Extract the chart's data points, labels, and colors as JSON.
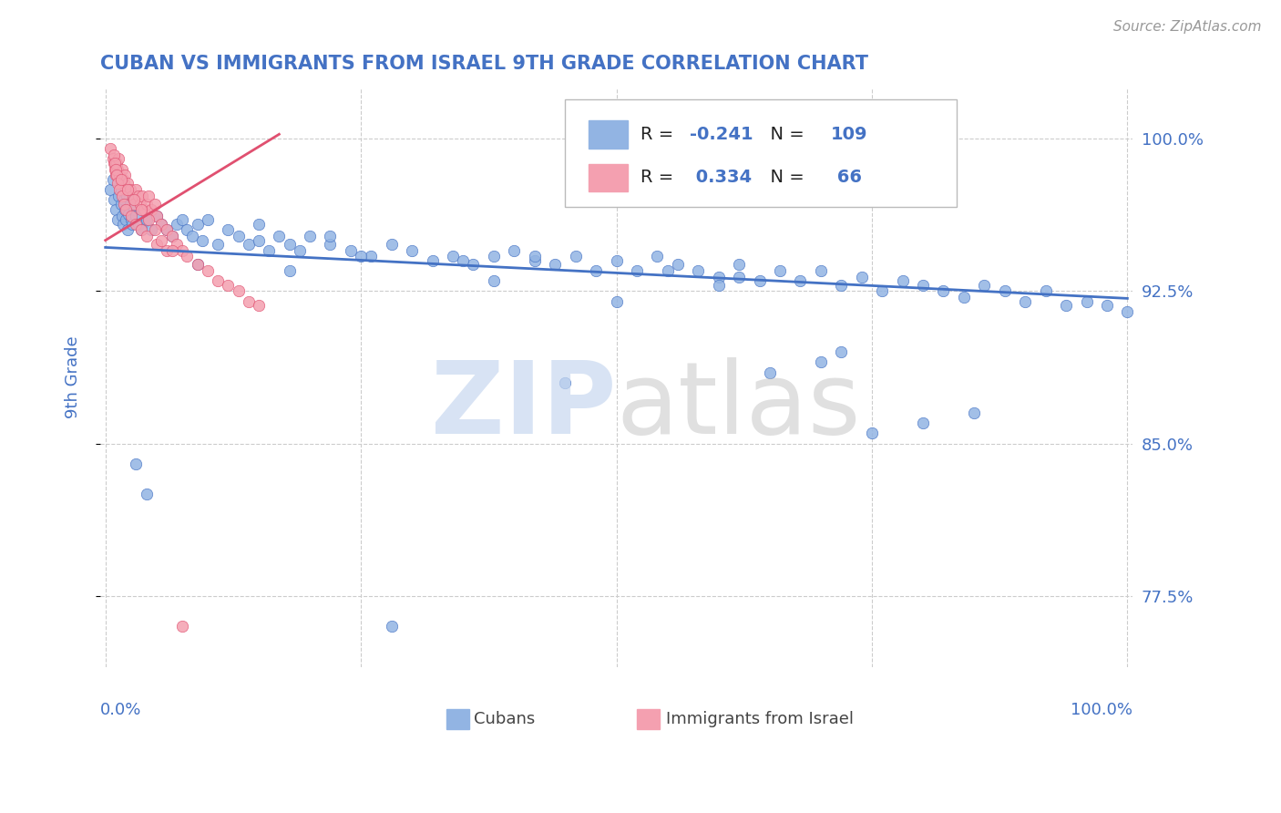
{
  "title": "CUBAN VS IMMIGRANTS FROM ISRAEL 9TH GRADE CORRELATION CHART",
  "source": "Source: ZipAtlas.com",
  "ylabel": "9th Grade",
  "legend_label1": "Cubans",
  "legend_label2": "Immigrants from Israel",
  "R1": -0.241,
  "N1": 109,
  "R2": 0.334,
  "N2": 66,
  "color_blue": "#92B4E3",
  "color_pink": "#F4A0B0",
  "color_trend_blue": "#4472C4",
  "color_trend_pink": "#E05070",
  "title_color": "#4472C4",
  "axis_label_color": "#4472C4",
  "tick_color": "#4472C4",
  "ymin": 0.74,
  "ymax": 1.025,
  "xmin": -0.005,
  "xmax": 1.005,
  "yticks": [
    0.775,
    0.85,
    0.925,
    1.0
  ],
  "xticks": [
    0.0,
    0.25,
    0.5,
    0.75,
    1.0
  ],
  "blue_x": [
    0.005,
    0.007,
    0.008,
    0.01,
    0.012,
    0.013,
    0.015,
    0.015,
    0.016,
    0.017,
    0.018,
    0.019,
    0.02,
    0.021,
    0.022,
    0.023,
    0.024,
    0.025,
    0.026,
    0.027,
    0.028,
    0.03,
    0.032,
    0.035,
    0.04,
    0.045,
    0.05,
    0.055,
    0.06,
    0.065,
    0.07,
    0.075,
    0.08,
    0.085,
    0.09,
    0.095,
    0.1,
    0.11,
    0.12,
    0.13,
    0.14,
    0.15,
    0.16,
    0.17,
    0.18,
    0.19,
    0.2,
    0.22,
    0.24,
    0.26,
    0.28,
    0.3,
    0.32,
    0.34,
    0.36,
    0.38,
    0.4,
    0.42,
    0.44,
    0.46,
    0.48,
    0.5,
    0.52,
    0.54,
    0.56,
    0.58,
    0.6,
    0.62,
    0.64,
    0.66,
    0.68,
    0.7,
    0.72,
    0.74,
    0.76,
    0.78,
    0.8,
    0.82,
    0.84,
    0.86,
    0.88,
    0.9,
    0.92,
    0.94,
    0.96,
    0.98,
    1.0,
    0.35,
    0.25,
    0.55,
    0.45,
    0.65,
    0.75,
    0.15,
    0.42,
    0.38,
    0.22,
    0.18,
    0.6,
    0.7,
    0.03,
    0.04,
    0.09,
    0.28,
    0.5,
    0.8,
    0.62,
    0.72,
    0.85
  ],
  "blue_y": [
    0.975,
    0.98,
    0.97,
    0.965,
    0.96,
    0.972,
    0.968,
    0.975,
    0.962,
    0.958,
    0.97,
    0.965,
    0.96,
    0.972,
    0.955,
    0.963,
    0.968,
    0.96,
    0.958,
    0.97,
    0.965,
    0.962,
    0.958,
    0.955,
    0.96,
    0.955,
    0.962,
    0.958,
    0.955,
    0.952,
    0.958,
    0.96,
    0.955,
    0.952,
    0.958,
    0.95,
    0.96,
    0.948,
    0.955,
    0.952,
    0.948,
    0.95,
    0.945,
    0.952,
    0.948,
    0.945,
    0.952,
    0.948,
    0.945,
    0.942,
    0.948,
    0.945,
    0.94,
    0.942,
    0.938,
    0.942,
    0.945,
    0.94,
    0.938,
    0.942,
    0.935,
    0.94,
    0.935,
    0.942,
    0.938,
    0.935,
    0.932,
    0.938,
    0.93,
    0.935,
    0.93,
    0.935,
    0.928,
    0.932,
    0.925,
    0.93,
    0.928,
    0.925,
    0.922,
    0.928,
    0.925,
    0.92,
    0.925,
    0.918,
    0.92,
    0.918,
    0.915,
    0.94,
    0.942,
    0.935,
    0.88,
    0.885,
    0.855,
    0.958,
    0.942,
    0.93,
    0.952,
    0.935,
    0.928,
    0.89,
    0.84,
    0.825,
    0.938,
    0.76,
    0.92,
    0.86,
    0.932,
    0.895,
    0.865
  ],
  "pink_x": [
    0.005,
    0.007,
    0.008,
    0.009,
    0.01,
    0.011,
    0.012,
    0.013,
    0.014,
    0.015,
    0.016,
    0.017,
    0.018,
    0.019,
    0.02,
    0.022,
    0.024,
    0.026,
    0.028,
    0.03,
    0.032,
    0.034,
    0.036,
    0.038,
    0.04,
    0.042,
    0.045,
    0.048,
    0.05,
    0.055,
    0.06,
    0.065,
    0.07,
    0.075,
    0.08,
    0.09,
    0.1,
    0.11,
    0.12,
    0.13,
    0.14,
    0.15,
    0.008,
    0.009,
    0.01,
    0.011,
    0.012,
    0.014,
    0.016,
    0.018,
    0.02,
    0.025,
    0.03,
    0.035,
    0.04,
    0.05,
    0.06,
    0.015,
    0.022,
    0.028,
    0.035,
    0.042,
    0.048,
    0.055,
    0.065,
    0.075
  ],
  "pink_y": [
    0.995,
    0.99,
    0.988,
    0.985,
    0.982,
    0.988,
    0.985,
    0.99,
    0.982,
    0.978,
    0.985,
    0.98,
    0.978,
    0.982,
    0.975,
    0.978,
    0.975,
    0.972,
    0.968,
    0.975,
    0.972,
    0.968,
    0.972,
    0.965,
    0.968,
    0.972,
    0.965,
    0.968,
    0.962,
    0.958,
    0.955,
    0.952,
    0.948,
    0.945,
    0.942,
    0.938,
    0.935,
    0.93,
    0.928,
    0.925,
    0.92,
    0.918,
    0.992,
    0.988,
    0.985,
    0.982,
    0.978,
    0.975,
    0.972,
    0.968,
    0.965,
    0.962,
    0.958,
    0.955,
    0.952,
    0.948,
    0.945,
    0.98,
    0.975,
    0.97,
    0.965,
    0.96,
    0.955,
    0.95,
    0.945,
    0.76
  ]
}
